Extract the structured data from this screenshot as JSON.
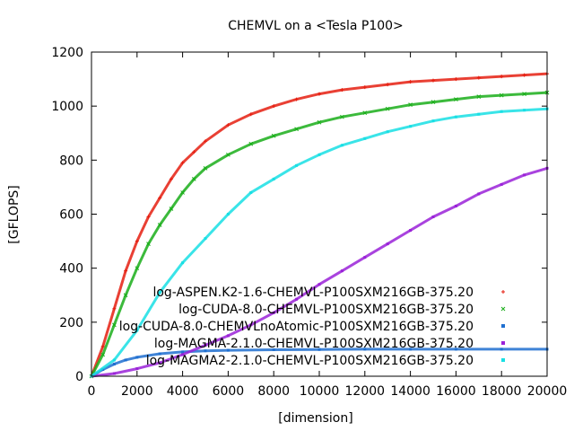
{
  "chart_data": {
    "type": "scatter",
    "title": "CHEMVL on a <Tesla P100>",
    "xlabel": "[dimension]",
    "ylabel": "[GFLOPS]",
    "xlim": [
      0,
      20000
    ],
    "ylim": [
      0,
      1200
    ],
    "x_ticks": [
      0,
      2000,
      4000,
      6000,
      8000,
      10000,
      12000,
      14000,
      16000,
      18000,
      20000
    ],
    "y_ticks": [
      0,
      200,
      400,
      600,
      800,
      1000,
      1200
    ],
    "legend_position": "bottom-right",
    "series": [
      {
        "name": "log-ASPEN.K2-1.6-CHEMVL-P100SXM216GB-375.20",
        "color": "#e51e10",
        "marker": "plus",
        "x": [
          0,
          500,
          1000,
          1500,
          2000,
          2500,
          3000,
          3500,
          4000,
          4500,
          5000,
          6000,
          7000,
          8000,
          9000,
          10000,
          11000,
          12000,
          13000,
          14000,
          15000,
          16000,
          17000,
          18000,
          19000,
          20000
        ],
        "y": [
          0,
          110,
          250,
          390,
          500,
          590,
          660,
          730,
          790,
          830,
          870,
          930,
          970,
          1000,
          1025,
          1045,
          1060,
          1070,
          1080,
          1090,
          1095,
          1100,
          1105,
          1110,
          1115,
          1120
        ]
      },
      {
        "name": "log-CUDA-8.0-CHEMVL-P100SXM216GB-375.20",
        "color": "#1aae1a",
        "marker": "cross",
        "x": [
          0,
          500,
          1000,
          1500,
          2000,
          2500,
          3000,
          3500,
          4000,
          4500,
          5000,
          6000,
          7000,
          8000,
          9000,
          10000,
          11000,
          12000,
          13000,
          14000,
          15000,
          16000,
          17000,
          18000,
          19000,
          20000
        ],
        "y": [
          0,
          80,
          190,
          300,
          400,
          490,
          560,
          620,
          680,
          730,
          770,
          820,
          860,
          890,
          915,
          940,
          960,
          975,
          990,
          1005,
          1015,
          1025,
          1035,
          1040,
          1045,
          1050
        ]
      },
      {
        "name": "log-CUDA-8.0-CHEMVLnoAtomic-P100SXM216GB-375.20",
        "color": "#1f6fd0",
        "marker": "square",
        "x": [
          0,
          500,
          1000,
          1500,
          2000,
          3000,
          4000,
          5000,
          6000,
          8000,
          10000,
          12000,
          14000,
          16000,
          18000,
          20000
        ],
        "y": [
          0,
          25,
          45,
          60,
          70,
          83,
          90,
          94,
          96,
          98,
          99,
          100,
          100,
          100,
          100,
          100
        ]
      },
      {
        "name": "log-MAGMA-2.1.0-CHEMVL-P100SXM216GB-375.20",
        "color": "#9a22d8",
        "marker": "square",
        "x": [
          0,
          1000,
          2000,
          3000,
          4000,
          5000,
          6000,
          7000,
          8000,
          9000,
          10000,
          11000,
          12000,
          13000,
          14000,
          15000,
          16000,
          17000,
          18000,
          19000,
          20000
        ],
        "y": [
          0,
          10,
          28,
          50,
          80,
          115,
          150,
          190,
          235,
          285,
          340,
          390,
          440,
          490,
          540,
          590,
          630,
          675,
          710,
          745,
          770
        ]
      },
      {
        "name": "log-MAGMA2-2.1.0-CHEMVL-P100SXM216GB-375.20",
        "color": "#18dfe4",
        "marker": "square",
        "x": [
          0,
          1000,
          2000,
          3000,
          4000,
          5000,
          6000,
          7000,
          8000,
          9000,
          10000,
          11000,
          12000,
          13000,
          14000,
          15000,
          16000,
          17000,
          18000,
          19000,
          20000
        ],
        "y": [
          0,
          60,
          170,
          310,
          420,
          510,
          600,
          680,
          730,
          780,
          820,
          855,
          880,
          905,
          925,
          945,
          960,
          970,
          980,
          985,
          990
        ]
      }
    ]
  }
}
